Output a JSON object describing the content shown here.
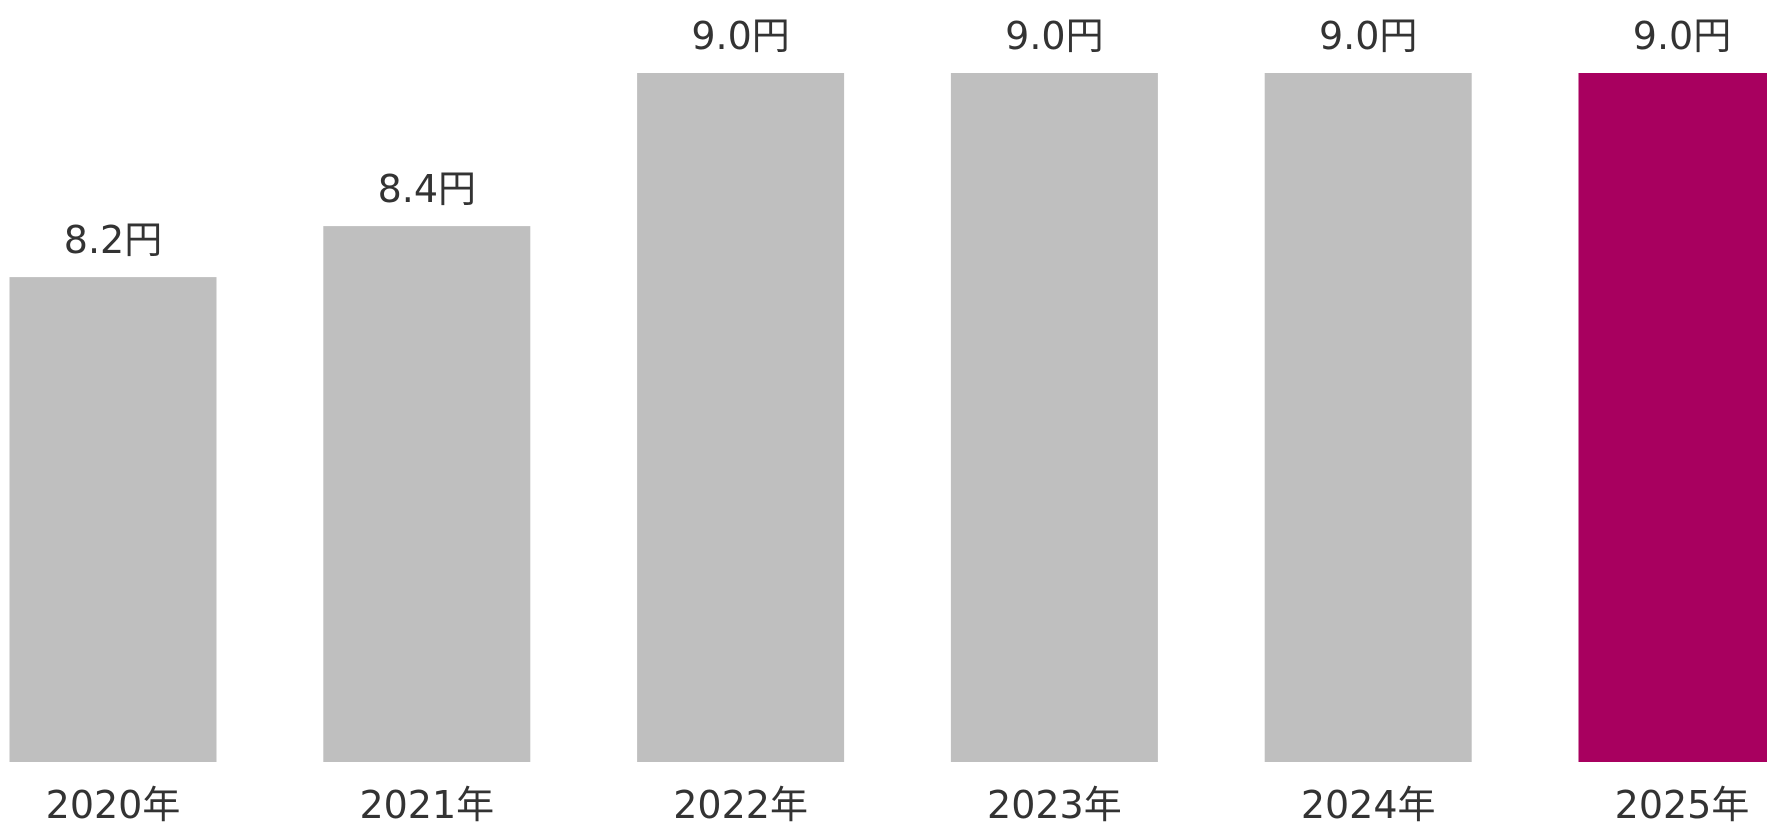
{
  "chart_data": {
    "type": "bar",
    "categories": [
      "2020年",
      "2021年",
      "2022年",
      "2023年",
      "2024年",
      "2025年"
    ],
    "values": [
      8.2,
      8.4,
      9.0,
      9.0,
      9.0,
      9.0
    ],
    "value_labels": [
      "8.2円",
      "8.4円",
      "9.0円",
      "9.0円",
      "9.0円",
      "9.0円"
    ],
    "highlight_index": 5,
    "colors": {
      "bar": "#bfbfbf",
      "highlight": "#a8005f",
      "text": "#333333"
    },
    "title": "",
    "xlabel": "",
    "ylabel": "",
    "ylim": [
      6.3,
      9.0
    ],
    "grid": false,
    "legend": "none"
  }
}
